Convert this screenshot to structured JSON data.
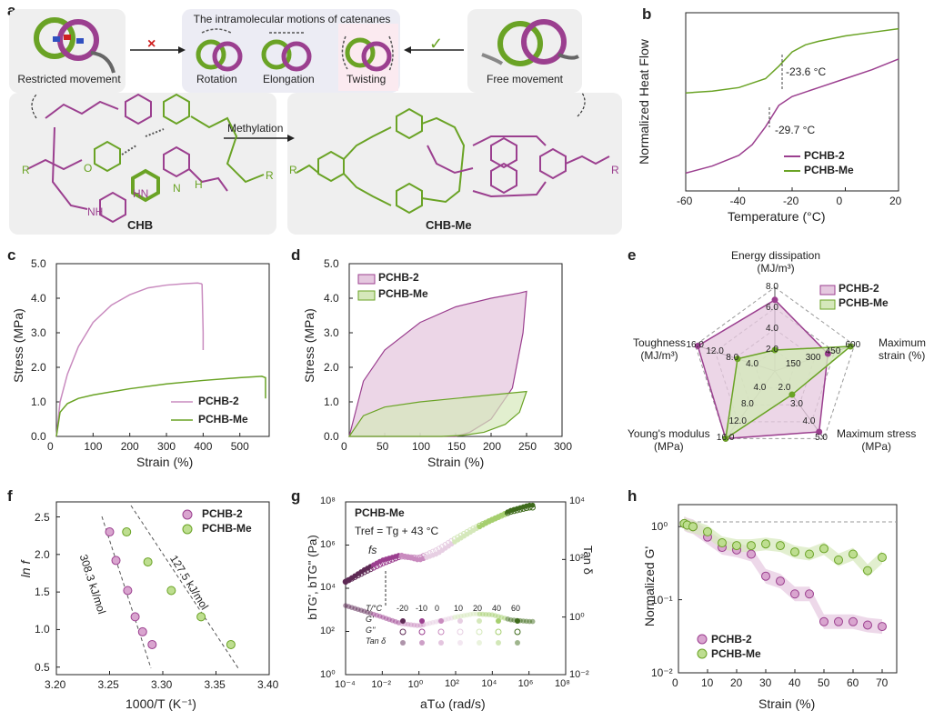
{
  "panels": {
    "a": {
      "letter": "a",
      "top_title": "The intramolecular motions of catenanes",
      "restricted_label": "Restricted movement",
      "free_label": "Free movement",
      "rotation_label": "Rotation",
      "elongation_label": "Elongation",
      "twisting_label": "Twisting",
      "cross_mark": "×",
      "check_mark": "✓",
      "methylation_label": "Methylation",
      "chb_label": "CHB",
      "chbme_label": "CHB-Me",
      "r_left": "R",
      "r_right": "R",
      "r_left2": "R",
      "r_right2": "R",
      "atom_o": "O",
      "atom_n": "N",
      "atom_h": "H",
      "atom_nh": "NH",
      "atom_hn": "HN"
    },
    "b": {
      "letter": "b",
      "ylabel": "Normalized Heat Flow",
      "xlabel": "Temperature (°C)",
      "ann_me": "-23.6 °C",
      "ann_2": "-29.7 °C",
      "legend": [
        "PCHB-2",
        "PCHB-Me"
      ],
      "xticks": [
        "-60",
        "-40",
        "-20",
        "0",
        "20"
      ]
    },
    "c": {
      "letter": "c",
      "ylabel": "Stress (MPa)",
      "xlabel": "Strain (%)",
      "legend": [
        "PCHB-2",
        "PCHB-Me"
      ],
      "xticks": [
        "0",
        "100",
        "200",
        "300",
        "400",
        "500"
      ],
      "yticks": [
        "0.0",
        "1.0",
        "2.0",
        "3.0",
        "4.0",
        "5.0"
      ]
    },
    "d": {
      "letter": "d",
      "ylabel": "Stress (MPa)",
      "xlabel": "Strain (%)",
      "legend": [
        "PCHB-2",
        "PCHB-Me"
      ],
      "xticks": [
        "0",
        "50",
        "100",
        "150",
        "200",
        "250",
        "300"
      ],
      "yticks": [
        "0.0",
        "1.0",
        "2.0",
        "3.0",
        "4.0",
        "5.0"
      ]
    },
    "e": {
      "letter": "e",
      "axes": [
        "Energy dissipation\n(MJ/m³)",
        "Maximum\nstrain (%)",
        "Maximum stress\n(MPa)",
        "Young's modulus\n(MPa)",
        "Toughness\n(MJ/m³)"
      ],
      "legend": [
        "PCHB-2",
        "PCHB-Me"
      ]
    },
    "f": {
      "letter": "f",
      "ylabel": "ln f",
      "xlabel": "1000/T (K⁻¹)",
      "legend": [
        "PCHB-2",
        "PCHB-Me"
      ],
      "ann1": "308.3 kJ/mol",
      "ann2": "127.5 kJ/mol",
      "xticks": [
        "3.20",
        "3.25",
        "3.30",
        "3.35",
        "3.40"
      ],
      "yticks": [
        "0.5",
        "1.0",
        "1.5",
        "2.0",
        "2.5"
      ]
    },
    "g": {
      "letter": "g",
      "title": "PCHB-Me",
      "tref": "Tref = Tg + 43 °C",
      "fs": "fs",
      "ylabel": "bTG', bTG'' (Pa)",
      "ylabel2": "Tan δ",
      "xlabel": "aTω (rad/s)",
      "legend_rows": [
        "T/°C",
        "G'",
        "G''",
        "Tan δ"
      ],
      "legend_temps": [
        "-20",
        "-10",
        "0",
        "10",
        "20",
        "40",
        "60"
      ]
    },
    "h": {
      "letter": "h",
      "ylabel": "Normalized G'",
      "xlabel": "Strain (%)",
      "legend": [
        "PCHB-2",
        "PCHB-Me"
      ],
      "xticks": [
        "0",
        "10",
        "20",
        "30",
        "40",
        "50",
        "60",
        "70"
      ]
    }
  },
  "colors": {
    "purple": "#9b3f8f",
    "purple_light": "#c98bbf",
    "purple_fill": "#e5c8df",
    "green": "#6aa325",
    "green_light": "#a6cf6f",
    "green_fill": "#d5e8bb",
    "dark_purple": "#5e2a55",
    "dark_green": "#3f6b1c"
  },
  "chart_data": [
    {
      "panel": "b",
      "type": "line",
      "xlabel": "Temperature (°C)",
      "ylabel": "Normalized Heat Flow",
      "xlim": [
        -60,
        20
      ],
      "series": [
        {
          "name": "PCHB-2",
          "x": [
            -60,
            -50,
            -40,
            -35,
            -30,
            -25,
            -20,
            -10,
            0,
            10,
            20
          ],
          "y": [
            0.1,
            0.14,
            0.2,
            0.26,
            0.36,
            0.48,
            0.53,
            0.58,
            0.63,
            0.68,
            0.74
          ]
        },
        {
          "name": "PCHB-Me",
          "x": [
            -60,
            -50,
            -40,
            -30,
            -25,
            -20,
            -15,
            -10,
            0,
            10,
            20
          ],
          "y": [
            0.55,
            0.56,
            0.58,
            0.63,
            0.7,
            0.78,
            0.82,
            0.84,
            0.87,
            0.89,
            0.91
          ]
        }
      ],
      "annotations": [
        {
          "x": -23.6,
          "text": "-23.6 °C"
        },
        {
          "x": -29.7,
          "text": "-29.7 °C"
        }
      ]
    },
    {
      "panel": "c",
      "type": "line",
      "xlabel": "Strain (%)",
      "ylabel": "Stress (MPa)",
      "xlim": [
        0,
        580
      ],
      "ylim": [
        0,
        5
      ],
      "series": [
        {
          "name": "PCHB-2",
          "x": [
            0,
            10,
            30,
            60,
            100,
            150,
            200,
            250,
            300,
            350,
            385,
            395,
            397,
            400,
            400
          ],
          "y": [
            0,
            1.0,
            1.8,
            2.6,
            3.3,
            3.8,
            4.1,
            4.3,
            4.38,
            4.42,
            4.44,
            4.42,
            4.4,
            3.0,
            2.5
          ]
        },
        {
          "name": "PCHB-Me",
          "x": [
            0,
            10,
            30,
            60,
            100,
            200,
            300,
            400,
            500,
            560,
            570,
            570
          ],
          "y": [
            0,
            0.7,
            0.95,
            1.1,
            1.2,
            1.38,
            1.52,
            1.62,
            1.7,
            1.74,
            1.7,
            1.1
          ]
        }
      ]
    },
    {
      "panel": "d",
      "type": "area",
      "xlabel": "Strain (%)",
      "ylabel": "Stress (MPa)",
      "xlim": [
        0,
        300
      ],
      "ylim": [
        0,
        5
      ],
      "series": [
        {
          "name": "PCHB-2",
          "loading_x": [
            0,
            20,
            50,
            100,
            150,
            200,
            240,
            250
          ],
          "loading_y": [
            0,
            1.6,
            2.5,
            3.3,
            3.75,
            4.0,
            4.15,
            4.2
          ],
          "unloading_x": [
            250,
            245,
            230,
            200,
            170,
            150
          ],
          "unloading_y": [
            4.2,
            3.0,
            1.4,
            0.5,
            0.12,
            0
          ]
        },
        {
          "name": "PCHB-Me",
          "loading_x": [
            0,
            20,
            50,
            100,
            150,
            200,
            250
          ],
          "loading_y": [
            0,
            0.6,
            0.85,
            1.0,
            1.1,
            1.2,
            1.3
          ],
          "unloading_x": [
            250,
            240,
            220,
            190,
            160,
            130
          ],
          "unloading_y": [
            1.3,
            0.7,
            0.35,
            0.12,
            0.03,
            0
          ]
        }
      ]
    },
    {
      "panel": "e",
      "type": "radar",
      "axes": [
        "Energy dissipation (MJ/m³)",
        "Maximum strain (%)",
        "Maximum stress (MPa)",
        "Young's modulus (MPa)",
        "Toughness (MJ/m³)"
      ],
      "axis_ranges": [
        [
          0,
          8.0
        ],
        [
          0,
          600
        ],
        [
          0,
          5.0
        ],
        [
          0,
          16.0
        ],
        [
          0,
          16.0
        ]
      ],
      "axis_ticks": [
        [
          "2.0",
          "4.0",
          "6.0",
          "8.0"
        ],
        [
          "150",
          "300",
          "450",
          "600"
        ],
        [
          "2.0",
          "3.0",
          "4.0",
          "5.0"
        ],
        [
          "4.0",
          "8.0",
          "12.0",
          "16.0"
        ],
        [
          "4.0",
          "8.0",
          "12.0",
          "16.0"
        ]
      ],
      "series": [
        {
          "name": "PCHB-2",
          "values": [
            6.8,
            400,
            4.5,
            16.0,
            15.5
          ]
        },
        {
          "name": "PCHB-Me",
          "values": [
            2.0,
            570,
            1.75,
            16.0,
            7.5
          ]
        }
      ]
    },
    {
      "panel": "f",
      "type": "scatter",
      "xlabel": "1000/T (K⁻¹)",
      "ylabel": "ln f",
      "xlim": [
        3.2,
        3.4
      ],
      "ylim": [
        0.4,
        2.7
      ],
      "series": [
        {
          "name": "PCHB-2",
          "x": [
            3.25,
            3.256,
            3.267,
            3.274,
            3.281,
            3.29
          ],
          "y": [
            2.3,
            1.92,
            1.52,
            1.17,
            0.97,
            0.8
          ]
        },
        {
          "name": "PCHB-Me",
          "x": [
            3.266,
            3.286,
            3.308,
            3.336,
            3.364
          ],
          "y": [
            2.3,
            1.9,
            1.52,
            1.17,
            0.8
          ]
        }
      ],
      "annotations": [
        "308.3 kJ/mol",
        "127.5 kJ/mol"
      ]
    },
    {
      "panel": "g",
      "type": "scatter",
      "xlabel": "aTω (rad/s)",
      "ylabel": "bTG', bTG'' (Pa)",
      "ylabel2": "Tan δ",
      "xscale": "log",
      "yscale": "log",
      "xlim": [
        0.0001,
        100000000
      ],
      "ylim": [
        1,
        100000000
      ],
      "y2lim": [
        0.01,
        10000
      ],
      "series": [
        {
          "name": "G'",
          "x": [
            0.0001,
            0.001,
            0.01,
            0.1,
            1,
            10,
            100,
            1000,
            10000,
            100000,
            1000000
          ],
          "y": [
            20000,
            70000,
            200000,
            350000,
            200000,
            400000,
            1500000,
            5000000,
            15000000,
            40000000,
            70000000
          ]
        },
        {
          "name": "G''",
          "x": [
            0.0001,
            0.001,
            0.01,
            0.1,
            1,
            10,
            100,
            1000,
            10000,
            100000,
            1000000
          ],
          "y": [
            20000,
            55000,
            140000,
            300000,
            250000,
            600000,
            2000000,
            6000000,
            15000000,
            35000000,
            55000000
          ]
        },
        {
          "name": "Tan δ",
          "x": [
            0.0001,
            0.001,
            0.01,
            0.1,
            1,
            10,
            100,
            1000,
            10000,
            100000,
            1000000
          ],
          "y": [
            2.5,
            1.6,
            1.0,
            0.6,
            0.5,
            0.7,
            1.0,
            1.3,
            1.2,
            0.8,
            0.7
          ]
        }
      ]
    },
    {
      "panel": "h",
      "type": "scatter",
      "xlabel": "Strain (%)",
      "ylabel": "Normalized G'",
      "xlim": [
        0,
        75
      ],
      "yscale": "log",
      "ylim": [
        0.01,
        2
      ],
      "series": [
        {
          "name": "PCHB-2",
          "x": [
            2,
            3,
            5,
            10,
            15,
            20,
            25,
            30,
            35,
            40,
            45,
            50,
            55,
            60,
            65,
            70
          ],
          "y": [
            1.1,
            1.05,
            1.0,
            0.72,
            0.52,
            0.48,
            0.42,
            0.21,
            0.18,
            0.12,
            0.12,
            0.05,
            0.05,
            0.05,
            0.045,
            0.043
          ]
        },
        {
          "name": "PCHB-Me",
          "x": [
            2,
            3,
            5,
            10,
            15,
            20,
            25,
            30,
            35,
            40,
            45,
            50,
            55,
            60,
            65,
            70
          ],
          "y": [
            1.1,
            1.05,
            1.0,
            0.85,
            0.6,
            0.55,
            0.55,
            0.58,
            0.55,
            0.45,
            0.42,
            0.5,
            0.35,
            0.42,
            0.25,
            0.38
          ]
        }
      ]
    }
  ]
}
